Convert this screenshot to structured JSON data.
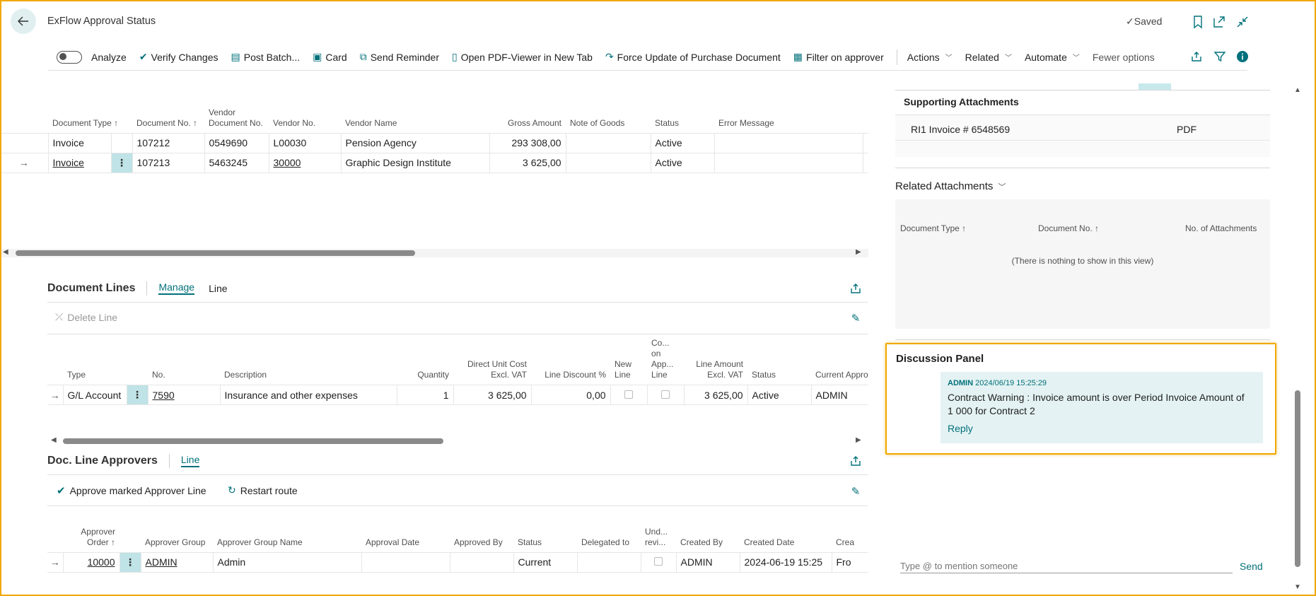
{
  "header": {
    "title": "ExFlow Approval Status",
    "saved_label": "Saved"
  },
  "actionbar": {
    "items": [
      {
        "label": "Analyze",
        "icon": "toggle-switch"
      },
      {
        "label": "Verify Changes",
        "icon": "verify-icon"
      },
      {
        "label": "Post Batch...",
        "icon": "post-batch-icon"
      },
      {
        "label": "Card",
        "icon": "card-icon"
      },
      {
        "label": "Send Reminder",
        "icon": "send-reminder-icon"
      },
      {
        "label": "Open PDF-Viewer in New Tab",
        "icon": "pdf-icon"
      },
      {
        "label": "Force Update of Purchase Document",
        "icon": "refresh-icon"
      },
      {
        "label": "Filter on approver",
        "icon": "filter-approver-icon"
      }
    ],
    "menus": [
      "Actions",
      "Related",
      "Automate"
    ],
    "fewer_options": "Fewer options"
  },
  "documents": {
    "columns": {
      "doc_type": "Document Type ↑",
      "doc_no": "Document No. ↑",
      "vendor_doc_no": "Vendor Document No.",
      "vendor_no": "Vendor No.",
      "vendor_name": "Vendor Name",
      "gross_amount": "Gross Amount",
      "note_of_goods": "Note of Goods",
      "status": "Status",
      "error_message": "Error Message"
    },
    "rows": [
      {
        "doc_type": "Invoice",
        "doc_no": "107212",
        "vendor_doc_no": "0549690",
        "vendor_no": "L00030",
        "vendor_name": "Pension Agency",
        "gross_amount": "293 308,00",
        "note_of_goods": "",
        "status": "Active",
        "error_message": ""
      },
      {
        "doc_type": "Invoice",
        "doc_no": "107213",
        "vendor_doc_no": "5463245",
        "vendor_no": "30000",
        "vendor_name": "Graphic Design Institute",
        "gross_amount": "3 625,00",
        "note_of_goods": "",
        "status": "Active",
        "error_message": ""
      }
    ]
  },
  "document_lines": {
    "title": "Document Lines",
    "tabs": [
      "Manage",
      "Line"
    ],
    "delete_line": "Delete Line",
    "columns": {
      "type": "Type",
      "no": "No.",
      "description": "Description",
      "quantity": "Quantity",
      "direct_unit_cost": "Direct Unit Cost Excl. VAT",
      "line_discount": "Line Discount %",
      "new_line": "New Line",
      "co_on_app_line": "Co... on App... Line",
      "line_amount": "Line Amount Excl. VAT",
      "status": "Status",
      "current_approver": "Current Approver"
    },
    "rows": [
      {
        "type": "G/L Account",
        "no": "7590",
        "description": "Insurance and other expenses",
        "quantity": "1",
        "direct_unit_cost": "3 625,00",
        "line_discount": "0,00",
        "line_amount": "3 625,00",
        "status": "Active",
        "current_approver": "ADMIN"
      }
    ]
  },
  "line_approvers": {
    "title": "Doc. Line Approvers",
    "tab": "Line",
    "approve_label": "Approve marked Approver Line",
    "restart_label": "Restart route",
    "columns": {
      "approver_order": "Approver Order ↑",
      "approver_group": "Approver Group",
      "approver_group_name": "Approver Group Name",
      "approval_date": "Approval Date",
      "approved_by": "Approved By",
      "status": "Status",
      "delegated_to": "Delegated to",
      "und_revi": "Und... revi...",
      "created_by": "Created By",
      "created_date": "Created Date",
      "crea": "Crea"
    },
    "rows": [
      {
        "approver_order": "10000",
        "approver_group": "ADMIN",
        "approver_group_name": "Admin",
        "approval_date": "",
        "approved_by": "",
        "status": "Current",
        "delegated_to": "",
        "created_by": "ADMIN",
        "created_date": "2024-06-19 15:25",
        "crea": "Fro"
      }
    ]
  },
  "supporting_attachments": {
    "title": "Supporting Attachments",
    "items": [
      {
        "name": "RI1 Invoice # 6548569",
        "type": "PDF"
      }
    ]
  },
  "related_attachments": {
    "title": "Related Attachments",
    "columns": {
      "doc_type": "Document Type ↑",
      "doc_no": "Document No. ↑",
      "no_attachments": "No. of Attachments"
    },
    "empty": "(There is nothing to show in this view)"
  },
  "discussion": {
    "title": "Discussion Panel",
    "author": "ADMIN",
    "timestamp": "2024/06/19 15:25:29",
    "message": "Contract Warning : Invoice amount is over Period Invoice Amount of 1 000 for Contract 2",
    "reply": "Reply",
    "input_placeholder": "Type @ to mention someone",
    "send": "Send"
  },
  "colors": {
    "accent": "#00707a",
    "highlight": "#f0a800",
    "selected_cell": "#bfe3e6",
    "comment_bg": "#e4f2f3"
  }
}
